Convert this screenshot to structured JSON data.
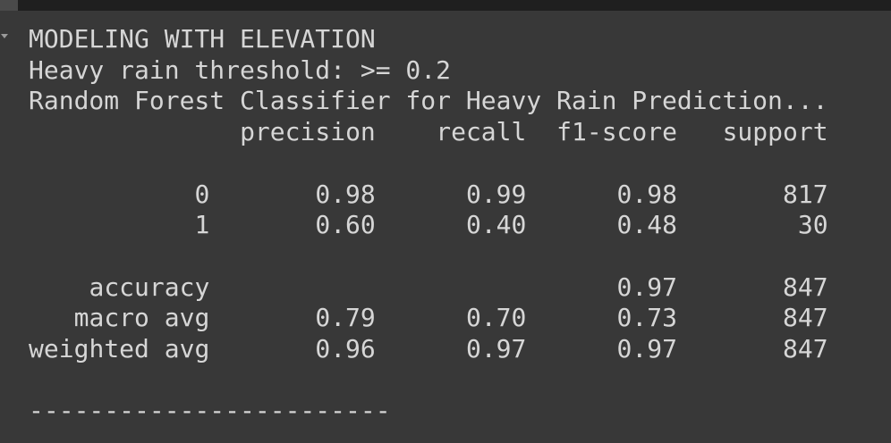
{
  "output": {
    "lines": [
      "MODELING WITH ELEVATION",
      "Heavy rain threshold: >= 0.2",
      "Random Forest Classifier for Heavy Rain Prediction..."
    ],
    "table": {
      "columns": [
        "precision",
        "recall",
        "f1-score",
        "support"
      ],
      "rows": [
        {
          "label": "0",
          "cells": {
            "0": "0.98",
            "1": "0.99",
            "2": "0.98",
            "3": "817"
          }
        },
        {
          "label": "1",
          "cells": {
            "0": "0.60",
            "1": "0.40",
            "2": "0.48",
            "3": "30"
          }
        },
        {
          "label": "accuracy",
          "cells": {
            "2": "0.97",
            "3": "847"
          }
        },
        {
          "label": "macro avg",
          "cells": {
            "0": "0.79",
            "1": "0.70",
            "2": "0.73",
            "3": "847"
          }
        },
        {
          "label": "weighted avg",
          "cells": {
            "0": "0.96",
            "1": "0.97",
            "2": "0.97",
            "3": "847"
          }
        }
      ]
    },
    "separator": "------------------------"
  }
}
